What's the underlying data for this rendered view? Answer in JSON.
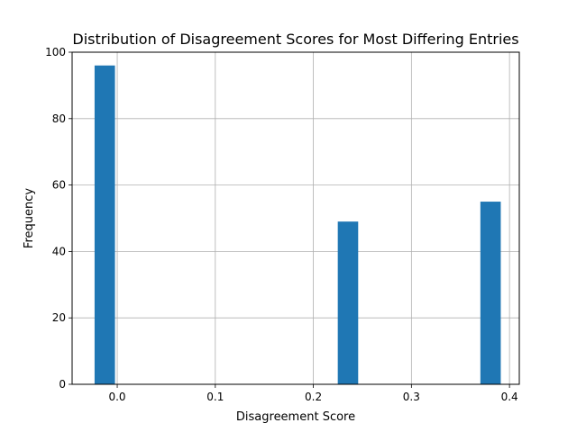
{
  "chart_data": {
    "type": "bar",
    "title": "Distribution of Disagreement Scores for Most Differing Entries",
    "xlabel": "Disagreement Score",
    "ylabel": "Frequency",
    "xlim": [
      -0.046,
      0.41
    ],
    "ylim": [
      0,
      100
    ],
    "xticks": [
      0.0,
      0.1,
      0.2,
      0.3,
      0.4
    ],
    "xtick_labels": [
      "0.0",
      "0.1",
      "0.2",
      "0.3",
      "0.4"
    ],
    "yticks": [
      0,
      20,
      40,
      60,
      80,
      100
    ],
    "ytick_labels": [
      "0",
      "20",
      "40",
      "60",
      "80",
      "100"
    ],
    "bin_width": 0.0208,
    "bars": [
      {
        "x": -0.0127,
        "value": 96
      },
      {
        "x": 0.2353,
        "value": 49
      },
      {
        "x": 0.3807,
        "value": 55
      }
    ],
    "grid": true,
    "bar_color": "#1f77b4"
  }
}
